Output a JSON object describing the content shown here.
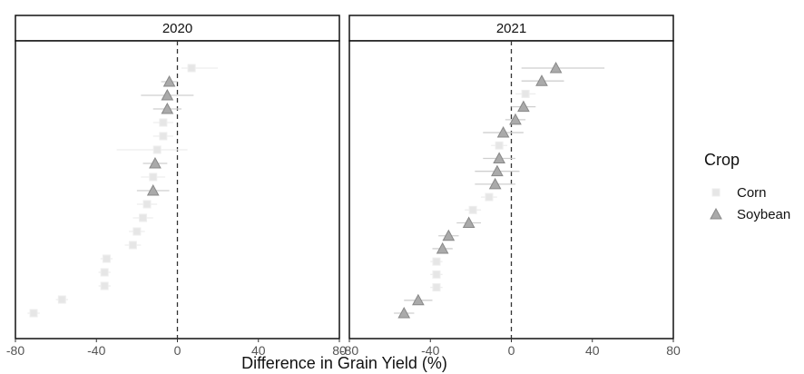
{
  "chart_data": {
    "type": "scatter",
    "xlabel": "Difference in Grain Yield (%)",
    "ylabel": "",
    "xlim": [
      -80,
      80
    ],
    "xticks": [
      "-80",
      "-40",
      "0",
      "40",
      "80"
    ],
    "reference_line_x": 0,
    "facets": [
      {
        "label": "2020",
        "series": [
          {
            "name": "Corn",
            "points": [
              {
                "x": 7,
                "lo": 2,
                "hi": 20
              },
              {
                "x": -7,
                "lo": -12,
                "hi": -2
              },
              {
                "x": -7,
                "lo": -12,
                "hi": -2
              },
              {
                "x": -10,
                "lo": -30,
                "hi": 5
              },
              {
                "x": -12,
                "lo": -18,
                "hi": -6
              },
              {
                "x": -15,
                "lo": -20,
                "hi": -10
              },
              {
                "x": -17,
                "lo": -22,
                "hi": -12
              },
              {
                "x": -20,
                "lo": -24,
                "hi": -16
              },
              {
                "x": -22,
                "lo": -26,
                "hi": -18
              },
              {
                "x": -35,
                "lo": -38,
                "hi": -32
              },
              {
                "x": -36,
                "lo": -39,
                "hi": -33
              },
              {
                "x": -36,
                "lo": -39,
                "hi": -33
              },
              {
                "x": -57,
                "lo": -60,
                "hi": -54
              },
              {
                "x": -71,
                "lo": -74,
                "hi": -68
              }
            ]
          },
          {
            "name": "Soybean",
            "points": [
              {
                "x": -4,
                "lo": -8,
                "hi": 0
              },
              {
                "x": -5,
                "lo": -18,
                "hi": 8
              },
              {
                "x": -5,
                "lo": -12,
                "hi": 2
              },
              {
                "x": -11,
                "lo": -17,
                "hi": -5
              },
              {
                "x": -12,
                "lo": -20,
                "hi": -4
              }
            ]
          }
        ]
      },
      {
        "label": "2021",
        "series": [
          {
            "name": "Corn",
            "points": [
              {
                "x": 7,
                "lo": 2,
                "hi": 12
              },
              {
                "x": -6,
                "lo": -10,
                "hi": -2
              },
              {
                "x": -11,
                "lo": -15,
                "hi": -7
              },
              {
                "x": -19,
                "lo": -23,
                "hi": -15
              },
              {
                "x": -37,
                "lo": -40,
                "hi": -34
              },
              {
                "x": -37,
                "lo": -40,
                "hi": -34
              },
              {
                "x": -37,
                "lo": -40,
                "hi": -34
              }
            ]
          },
          {
            "name": "Soybean",
            "points": [
              {
                "x": 22,
                "lo": 5,
                "hi": 46
              },
              {
                "x": 15,
                "lo": 5,
                "hi": 26
              },
              {
                "x": 6,
                "lo": 0,
                "hi": 12
              },
              {
                "x": 2,
                "lo": -3,
                "hi": 7
              },
              {
                "x": -4,
                "lo": -14,
                "hi": 6
              },
              {
                "x": -6,
                "lo": -14,
                "hi": 2
              },
              {
                "x": -7,
                "lo": -18,
                "hi": 4
              },
              {
                "x": -8,
                "lo": -18,
                "hi": 2
              },
              {
                "x": -21,
                "lo": -27,
                "hi": -15
              },
              {
                "x": -31,
                "lo": -36,
                "hi": -26
              },
              {
                "x": -34,
                "lo": -39,
                "hi": -29
              },
              {
                "x": -46,
                "lo": -53,
                "hi": -39
              },
              {
                "x": -53,
                "lo": -58,
                "hi": -48
              }
            ]
          }
        ]
      }
    ],
    "legend": {
      "title": "Crop",
      "placement": "right",
      "entries": [
        {
          "label": "Corn",
          "shape": "square",
          "color": "#e6e6e6"
        },
        {
          "label": "Soybean",
          "shape": "triangle",
          "color": "#aaaaaa"
        }
      ]
    }
  }
}
